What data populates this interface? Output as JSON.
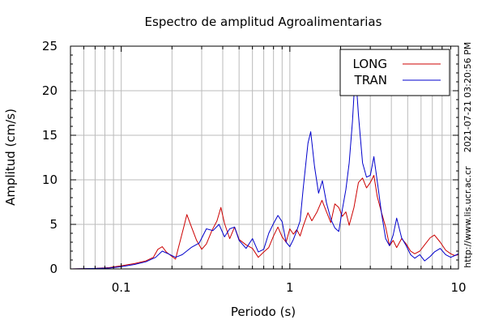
{
  "chart_data": {
    "type": "line",
    "title": "Espectro de amplitud Agroalimentarias",
    "xlabel": "Periodo (s)",
    "ylabel": "Amplitud (cm/s)",
    "xscale": "log",
    "xlim": [
      0.05,
      10
    ],
    "ylim": [
      0,
      25
    ],
    "xticks": [
      0.1,
      1,
      10
    ],
    "xtick_labels": [
      "0.1",
      "1",
      "10"
    ],
    "yticks": [
      0,
      5,
      10,
      15,
      20,
      25
    ],
    "ytick_labels": [
      "0",
      "5",
      "10",
      "15",
      "20",
      "25"
    ],
    "grid": true,
    "legend_position": "top-right",
    "timestamp": "2021-07-21 03:20:56 PM",
    "url": "http://www.lis.ucr.ac.cr",
    "series": [
      {
        "name": "LONG",
        "color": "#cc0000",
        "points": [
          [
            0.05,
            0
          ],
          [
            0.07,
            0.05
          ],
          [
            0.085,
            0.15
          ],
          [
            0.1,
            0.35
          ],
          [
            0.12,
            0.6
          ],
          [
            0.14,
            0.9
          ],
          [
            0.155,
            1.3
          ],
          [
            0.165,
            2.2
          ],
          [
            0.175,
            2.5
          ],
          [
            0.185,
            1.9
          ],
          [
            0.2,
            1.4
          ],
          [
            0.21,
            1.1
          ],
          [
            0.22,
            2.6
          ],
          [
            0.235,
            4.7
          ],
          [
            0.245,
            6.1
          ],
          [
            0.26,
            4.8
          ],
          [
            0.28,
            3.2
          ],
          [
            0.3,
            2.2
          ],
          [
            0.32,
            2.8
          ],
          [
            0.345,
            4.3
          ],
          [
            0.37,
            5.4
          ],
          [
            0.39,
            6.9
          ],
          [
            0.41,
            5.1
          ],
          [
            0.44,
            3.4
          ],
          [
            0.47,
            4.7
          ],
          [
            0.5,
            3.3
          ],
          [
            0.55,
            2.7
          ],
          [
            0.6,
            2.3
          ],
          [
            0.65,
            1.3
          ],
          [
            0.7,
            1.9
          ],
          [
            0.75,
            2.4
          ],
          [
            0.8,
            3.7
          ],
          [
            0.85,
            4.7
          ],
          [
            0.9,
            3.6
          ],
          [
            0.95,
            3.0
          ],
          [
            1.0,
            4.5
          ],
          [
            1.05,
            3.9
          ],
          [
            1.1,
            4.4
          ],
          [
            1.15,
            3.7
          ],
          [
            1.2,
            4.8
          ],
          [
            1.28,
            6.3
          ],
          [
            1.35,
            5.4
          ],
          [
            1.45,
            6.4
          ],
          [
            1.55,
            7.7
          ],
          [
            1.65,
            6.4
          ],
          [
            1.75,
            5.2
          ],
          [
            1.85,
            7.3
          ],
          [
            1.95,
            6.9
          ],
          [
            2.05,
            5.9
          ],
          [
            2.15,
            6.4
          ],
          [
            2.25,
            4.9
          ],
          [
            2.4,
            6.9
          ],
          [
            2.55,
            9.7
          ],
          [
            2.7,
            10.2
          ],
          [
            2.85,
            9.1
          ],
          [
            3.0,
            9.7
          ],
          [
            3.15,
            10.5
          ],
          [
            3.3,
            8.1
          ],
          [
            3.5,
            6.3
          ],
          [
            3.7,
            4.7
          ],
          [
            3.9,
            2.6
          ],
          [
            4.1,
            3.2
          ],
          [
            4.3,
            2.4
          ],
          [
            4.6,
            3.4
          ],
          [
            4.9,
            2.8
          ],
          [
            5.2,
            2.0
          ],
          [
            5.5,
            1.7
          ],
          [
            5.9,
            2.0
          ],
          [
            6.3,
            2.7
          ],
          [
            6.8,
            3.5
          ],
          [
            7.2,
            3.8
          ],
          [
            7.8,
            3.0
          ],
          [
            8.4,
            2.1
          ],
          [
            9.0,
            1.7
          ],
          [
            9.5,
            1.5
          ],
          [
            10.0,
            1.6
          ]
        ]
      },
      {
        "name": "TRAN",
        "color": "#0000cc",
        "points": [
          [
            0.05,
            0
          ],
          [
            0.07,
            0.05
          ],
          [
            0.085,
            0.1
          ],
          [
            0.1,
            0.25
          ],
          [
            0.12,
            0.5
          ],
          [
            0.14,
            0.8
          ],
          [
            0.16,
            1.3
          ],
          [
            0.175,
            2.0
          ],
          [
            0.19,
            1.7
          ],
          [
            0.21,
            1.3
          ],
          [
            0.23,
            1.6
          ],
          [
            0.26,
            2.4
          ],
          [
            0.29,
            2.9
          ],
          [
            0.32,
            4.5
          ],
          [
            0.35,
            4.3
          ],
          [
            0.38,
            5.0
          ],
          [
            0.41,
            3.6
          ],
          [
            0.44,
            4.5
          ],
          [
            0.47,
            4.7
          ],
          [
            0.5,
            3.2
          ],
          [
            0.55,
            2.3
          ],
          [
            0.6,
            3.4
          ],
          [
            0.65,
            1.9
          ],
          [
            0.7,
            2.2
          ],
          [
            0.75,
            4.0
          ],
          [
            0.8,
            5.1
          ],
          [
            0.85,
            6.0
          ],
          [
            0.9,
            5.3
          ],
          [
            0.95,
            3.0
          ],
          [
            1.0,
            2.5
          ],
          [
            1.05,
            3.3
          ],
          [
            1.1,
            4.3
          ],
          [
            1.15,
            5.4
          ],
          [
            1.2,
            9.0
          ],
          [
            1.28,
            14.1
          ],
          [
            1.33,
            15.4
          ],
          [
            1.4,
            11.5
          ],
          [
            1.48,
            8.5
          ],
          [
            1.56,
            9.9
          ],
          [
            1.65,
            7.4
          ],
          [
            1.75,
            5.6
          ],
          [
            1.85,
            4.6
          ],
          [
            1.95,
            4.2
          ],
          [
            2.05,
            6.7
          ],
          [
            2.15,
            8.9
          ],
          [
            2.25,
            11.9
          ],
          [
            2.35,
            16.5
          ],
          [
            2.45,
            22.3
          ],
          [
            2.55,
            17.3
          ],
          [
            2.7,
            11.9
          ],
          [
            2.85,
            10.3
          ],
          [
            3.0,
            10.5
          ],
          [
            3.15,
            12.6
          ],
          [
            3.3,
            9.8
          ],
          [
            3.5,
            6.2
          ],
          [
            3.7,
            3.4
          ],
          [
            3.9,
            2.6
          ],
          [
            4.1,
            3.8
          ],
          [
            4.3,
            5.7
          ],
          [
            4.6,
            3.5
          ],
          [
            4.9,
            2.6
          ],
          [
            5.2,
            1.6
          ],
          [
            5.5,
            1.2
          ],
          [
            5.9,
            1.6
          ],
          [
            6.3,
            0.9
          ],
          [
            6.8,
            1.4
          ],
          [
            7.2,
            1.9
          ],
          [
            7.8,
            2.3
          ],
          [
            8.4,
            1.6
          ],
          [
            9.0,
            1.3
          ],
          [
            9.5,
            1.5
          ],
          [
            10.0,
            1.7
          ]
        ]
      }
    ]
  }
}
